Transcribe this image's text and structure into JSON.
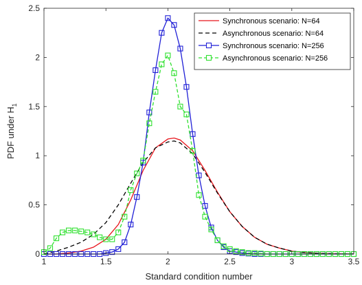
{
  "chart_data": {
    "type": "line",
    "title": "",
    "xlabel": "Standard condition number",
    "ylabel_main": "PDF under H",
    "ylabel_sub": "1",
    "xlim": [
      1,
      3.5
    ],
    "ylim": [
      0,
      2.5
    ],
    "xticks": [
      1,
      1.5,
      2,
      2.5,
      3,
      3.5
    ],
    "xtick_labels": [
      "1",
      "1.5",
      "2",
      "2.5",
      "3",
      "3.5"
    ],
    "yticks": [
      0,
      0.5,
      1,
      1.5,
      2,
      2.5
    ],
    "ytick_labels": [
      "0",
      "0.5",
      "1",
      "1.5",
      "2",
      "2.5"
    ],
    "grid": false,
    "legend_position": "top-right",
    "colors": {
      "red": "#e8141b",
      "black": "#000000",
      "blue": "#1f1fd6",
      "green": "#2ee02e",
      "axis": "#262626"
    },
    "series": [
      {
        "name": "Synchronous scenario: N=64",
        "color": "#e8141b",
        "dash": "solid",
        "marker": "none",
        "x": [
          1.0,
          1.1,
          1.2,
          1.3,
          1.4,
          1.5,
          1.6,
          1.7,
          1.8,
          1.9,
          2.0,
          2.05,
          2.1,
          2.2,
          2.3,
          2.4,
          2.5,
          2.6,
          2.7,
          2.8,
          2.9,
          3.0,
          3.1,
          3.2,
          3.3,
          3.4,
          3.5
        ],
        "y": [
          0.0,
          0.0,
          0.01,
          0.03,
          0.07,
          0.15,
          0.3,
          0.55,
          0.85,
          1.08,
          1.17,
          1.18,
          1.16,
          1.05,
          0.85,
          0.63,
          0.43,
          0.28,
          0.17,
          0.1,
          0.06,
          0.03,
          0.015,
          0.008,
          0.004,
          0.002,
          0.001
        ]
      },
      {
        "name": "Asynchronous scenario: N=64",
        "color": "#000000",
        "dash": "6,4",
        "marker": "none",
        "x": [
          1.0,
          1.1,
          1.2,
          1.3,
          1.4,
          1.5,
          1.6,
          1.7,
          1.8,
          1.9,
          2.0,
          2.05,
          2.1,
          2.2,
          2.3,
          2.4,
          2.5,
          2.6,
          2.7,
          2.8,
          2.9,
          3.0,
          3.1,
          3.2,
          3.3,
          3.4,
          3.5
        ],
        "y": [
          0.0,
          0.03,
          0.07,
          0.12,
          0.2,
          0.32,
          0.5,
          0.72,
          0.93,
          1.08,
          1.14,
          1.15,
          1.13,
          1.02,
          0.83,
          0.62,
          0.43,
          0.28,
          0.17,
          0.1,
          0.06,
          0.03,
          0.015,
          0.008,
          0.004,
          0.002,
          0.001
        ]
      },
      {
        "name": "Synchronous scenario: N=256",
        "color": "#1f1fd6",
        "dash": "solid",
        "marker": "square",
        "x": [
          1.0,
          1.05,
          1.1,
          1.15,
          1.2,
          1.25,
          1.3,
          1.35,
          1.4,
          1.45,
          1.5,
          1.55,
          1.6,
          1.65,
          1.7,
          1.75,
          1.8,
          1.85,
          1.9,
          1.95,
          2.0,
          2.05,
          2.1,
          2.15,
          2.2,
          2.25,
          2.3,
          2.35,
          2.4,
          2.45,
          2.5,
          2.55,
          2.6,
          2.65,
          2.7,
          2.75,
          2.8,
          2.85,
          2.9,
          2.95,
          3.0,
          3.05,
          3.1,
          3.15,
          3.2,
          3.25,
          3.3,
          3.35,
          3.4,
          3.45,
          3.5
        ],
        "y": [
          0,
          0,
          0,
          0,
          0,
          0,
          0,
          0,
          0,
          0,
          0.01,
          0.02,
          0.05,
          0.12,
          0.3,
          0.58,
          0.93,
          1.44,
          1.87,
          2.25,
          2.4,
          2.33,
          2.09,
          1.7,
          1.22,
          0.8,
          0.49,
          0.27,
          0.14,
          0.07,
          0.03,
          0.02,
          0.01,
          0.005,
          0,
          0,
          0,
          0,
          0,
          0,
          0,
          0,
          0,
          0,
          0,
          0,
          0,
          0,
          0,
          0,
          0
        ]
      },
      {
        "name": "Asynchronous scenario: N=256",
        "color": "#2ee02e",
        "dash": "5,3",
        "marker": "square",
        "x": [
          1.0,
          1.05,
          1.1,
          1.15,
          1.2,
          1.25,
          1.3,
          1.35,
          1.4,
          1.45,
          1.5,
          1.55,
          1.6,
          1.65,
          1.7,
          1.75,
          1.8,
          1.85,
          1.9,
          1.95,
          2.0,
          2.05,
          2.1,
          2.15,
          2.2,
          2.25,
          2.3,
          2.35,
          2.4,
          2.45,
          2.5,
          2.55,
          2.6,
          2.65,
          2.7,
          2.75,
          2.8,
          2.85,
          2.9,
          2.95,
          3.0,
          3.05,
          3.1,
          3.15,
          3.2,
          3.25,
          3.3,
          3.35,
          3.4,
          3.45,
          3.5
        ],
        "y": [
          0.02,
          0.06,
          0.16,
          0.22,
          0.24,
          0.24,
          0.23,
          0.22,
          0.2,
          0.17,
          0.15,
          0.15,
          0.22,
          0.38,
          0.65,
          0.82,
          0.95,
          1.33,
          1.65,
          1.93,
          2.02,
          1.84,
          1.5,
          1.42,
          1.05,
          0.6,
          0.38,
          0.25,
          0.14,
          0.08,
          0.05,
          0.03,
          0.02,
          0.01,
          0.01,
          0.005,
          0,
          0,
          0,
          0,
          0,
          0,
          0,
          0,
          0,
          0,
          0,
          0,
          0,
          0,
          0
        ]
      }
    ]
  }
}
